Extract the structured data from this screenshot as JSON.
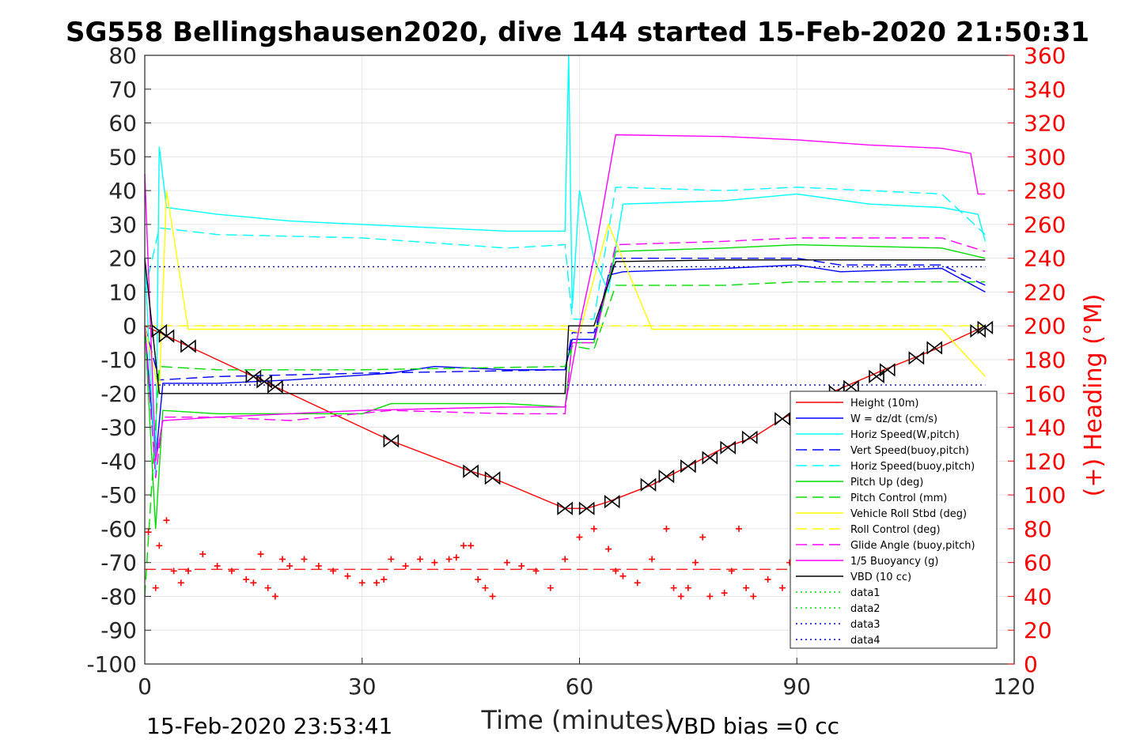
{
  "chart_data": {
    "type": "line",
    "title": "SG558 Bellingshausen2020, dive 144 started 15-Feb-2020 21:50:31",
    "xlabel": "Time (minutes)",
    "ylabel_left": "",
    "ylabel_right": "(+) Heading (°M)",
    "xlim": [
      0,
      120
    ],
    "ylim": [
      -100,
      80
    ],
    "ylim_right": [
      0,
      360
    ],
    "x_ticks": [
      0,
      30,
      60,
      90,
      120
    ],
    "y_ticks": [
      80,
      70,
      60,
      50,
      40,
      30,
      20,
      10,
      0,
      -10,
      -20,
      -30,
      -40,
      -50,
      -60,
      -70,
      -80,
      -90,
      -100
    ],
    "y_ticks_right": [
      360,
      340,
      320,
      300,
      280,
      260,
      240,
      220,
      200,
      180,
      160,
      140,
      120,
      100,
      80,
      60,
      40,
      20,
      0
    ],
    "grid": true,
    "legend_position": "bottom-right",
    "footer_left": "15-Feb-2020 23:53:41",
    "footer_right": "VBD bias =0 cc",
    "series": [
      {
        "name": "Height (10m)",
        "color": "#ff0000",
        "style": "solid",
        "x": [
          0,
          2,
          6,
          15,
          18,
          34,
          45,
          48,
          58,
          61,
          64,
          70,
          75,
          80,
          84,
          88,
          95,
          102,
          109,
          116
        ],
        "y": [
          0,
          -2,
          -6,
          -15,
          -18,
          -34,
          -43,
          -45,
          -54,
          -54,
          -52,
          -47,
          -41.5,
          -36,
          -33,
          -27.5,
          -19.5,
          -13,
          -7,
          0
        ]
      },
      {
        "name": "W = dz/dt (cm/s)",
        "color": "#0000ff",
        "style": "solid",
        "x": [
          0,
          1.5,
          2.5,
          10,
          20,
          34,
          40,
          50,
          58,
          59,
          62,
          64,
          66,
          80,
          90,
          96,
          110,
          116
        ],
        "y": [
          0,
          -40,
          -17,
          -17,
          -16,
          -14,
          -12,
          -13,
          -13,
          -4,
          -4,
          15,
          16,
          17,
          18,
          16,
          17,
          10
        ]
      },
      {
        "name": "Horiz Speed(W,pitch)",
        "color": "#00ffff",
        "style": "solid",
        "x": [
          0,
          1.5,
          2,
          3,
          10,
          20,
          30,
          40,
          50,
          58,
          58.5,
          59,
          60,
          62,
          64,
          66,
          80,
          90,
          100,
          110,
          115,
          116
        ],
        "y": [
          20,
          -45,
          53,
          35,
          33,
          31,
          30,
          29,
          28,
          28,
          80,
          5,
          40,
          20,
          10,
          36,
          37,
          39,
          36,
          35,
          33,
          25
        ]
      },
      {
        "name": "Vert Speed(buoy,pitch)",
        "color": "#0000ff",
        "style": "dashed",
        "x": [
          0,
          2,
          10,
          30,
          58,
          59,
          62,
          65,
          80,
          90,
          96,
          110,
          116
        ],
        "y": [
          0,
          -16,
          -15,
          -14,
          -13,
          -2,
          -2,
          20,
          20,
          20,
          18,
          18,
          12
        ]
      },
      {
        "name": "Horiz Speed(buoy,pitch)",
        "color": "#00ffff",
        "style": "dashed",
        "x": [
          0,
          2,
          10,
          30,
          50,
          58,
          59,
          62,
          65,
          80,
          90,
          110,
          116
        ],
        "y": [
          10,
          29,
          27,
          26,
          23,
          24,
          2,
          2,
          41,
          40,
          41,
          39,
          27
        ]
      },
      {
        "name": "Pitch Up (deg)",
        "color": "#00dd00",
        "style": "solid",
        "x": [
          0,
          1.5,
          2.5,
          10,
          30,
          34,
          50,
          58,
          59,
          62,
          65,
          80,
          90,
          110,
          116
        ],
        "y": [
          0,
          -60,
          -25,
          -26,
          -26,
          -23,
          -23,
          -24,
          -5,
          -5,
          22,
          23,
          24,
          23,
          20
        ]
      },
      {
        "name": "Pitch Control (mm)",
        "color": "#00dd00",
        "style": "dashed",
        "x": [
          0,
          2,
          10,
          30,
          58,
          59,
          62,
          65,
          80,
          90,
          116
        ],
        "y": [
          -80,
          -12,
          -13,
          -13,
          -12,
          -6,
          -7,
          12,
          12,
          13,
          13
        ]
      },
      {
        "name": "Vehicle Roll Stbd (deg)",
        "color": "#ffff00",
        "style": "solid",
        "x": [
          0,
          2,
          3,
          6,
          10,
          20,
          30,
          40,
          50,
          58,
          60,
          64,
          70,
          80,
          90,
          100,
          110,
          116
        ],
        "y": [
          0,
          -20,
          40,
          -1,
          -1,
          -1,
          -1,
          -1,
          -1,
          -1,
          -2,
          30,
          -1,
          -1,
          -1,
          -1,
          -1,
          -15
        ]
      },
      {
        "name": "Roll Control (deg)",
        "color": "#ffff00",
        "style": "dashed",
        "x": [
          0,
          2,
          10,
          30,
          58,
          64,
          80,
          100,
          116
        ],
        "y": [
          0,
          0,
          0,
          0,
          0,
          0,
          0,
          0,
          0
        ]
      },
      {
        "name": "Glide Angle (buoy,pitch)",
        "color": "#ff00ff",
        "style": "dashed",
        "x": [
          0,
          1.5,
          2.5,
          10,
          20,
          34,
          50,
          58,
          59,
          62,
          65,
          80,
          90,
          110,
          116
        ],
        "y": [
          0,
          -45,
          -27,
          -27,
          -28,
          -25,
          -26,
          -26,
          -5,
          -5,
          24,
          25,
          26,
          26,
          22
        ]
      },
      {
        "name": "1/5 Buoyancy (g)",
        "color": "#ff00ff",
        "style": "solid",
        "x": [
          0,
          1.5,
          2.5,
          10,
          20,
          30,
          40,
          50,
          58,
          60,
          62,
          65,
          80,
          90,
          100,
          110,
          114,
          115,
          116
        ],
        "y": [
          45,
          -40,
          -28,
          -27,
          -26,
          -25,
          -24.5,
          -24,
          -24,
          0,
          20,
          56.5,
          56,
          55,
          53.5,
          52.5,
          51,
          39,
          39
        ]
      },
      {
        "name": "VBD (10 cc)",
        "color": "#000000",
        "style": "solid",
        "x": [
          0,
          2,
          10,
          58,
          58.5,
          62,
          65,
          80,
          116
        ],
        "y": [
          20,
          -20,
          -20,
          -20,
          0,
          0,
          19,
          19.5,
          19.5
        ]
      },
      {
        "name": "data1",
        "color": "#00dd00",
        "style": "dotted",
        "x": [],
        "y": []
      },
      {
        "name": "data2",
        "color": "#00dd00",
        "style": "dotted",
        "x": [],
        "y": []
      },
      {
        "name": "data3",
        "color": "#0000cc",
        "style": "dotted",
        "x": [
          0,
          116
        ],
        "y": [
          17.5,
          17.5
        ]
      },
      {
        "name": "data4",
        "color": "#0000cc",
        "style": "dotted",
        "x": [
          0,
          116
        ],
        "y": [
          -17.5,
          -17.5
        ]
      }
    ],
    "heading": {
      "axis": "right",
      "color": "#ff0000",
      "marker": "+",
      "x": [
        0.5,
        1.5,
        2,
        3,
        4,
        5,
        6,
        8,
        10,
        12,
        14,
        15,
        16,
        17,
        18,
        19,
        20,
        22,
        24,
        26,
        28,
        30,
        32,
        33,
        34,
        36,
        38,
        40,
        42,
        43,
        44,
        45,
        46,
        47,
        48,
        50,
        52,
        54,
        56,
        58,
        60,
        62,
        64,
        65,
        66,
        68,
        70,
        72,
        73,
        74,
        75,
        76,
        77,
        78,
        80,
        81,
        82,
        83,
        84,
        86,
        88,
        89
      ],
      "y": [
        78,
        45,
        70,
        85,
        55,
        48,
        55,
        65,
        58,
        55,
        50,
        48,
        65,
        45,
        40,
        62,
        58,
        62,
        58,
        55,
        52,
        48,
        48,
        50,
        62,
        58,
        62,
        60,
        62,
        63,
        70,
        70,
        50,
        45,
        40,
        60,
        58,
        55,
        45,
        62,
        75,
        80,
        68,
        55,
        52,
        48,
        62,
        80,
        45,
        40,
        45,
        60,
        75,
        40,
        42,
        55,
        80,
        45,
        40,
        50,
        45,
        60
      ]
    },
    "heading_target": {
      "color": "#ff0000",
      "style": "dashed",
      "x": [
        0,
        116
      ],
      "y": [
        56,
        56
      ]
    },
    "markers": {
      "color": "#000000",
      "x": [
        2,
        3,
        6,
        15,
        16.5,
        18,
        34,
        45,
        48,
        58,
        61,
        64.5,
        69.5,
        72,
        75,
        78,
        80.5,
        83.5,
        88,
        95.5,
        97.5,
        101,
        102.5,
        106.5,
        109,
        115,
        116
      ],
      "y": [
        -1.5,
        -3,
        -6,
        -15,
        -16.5,
        -18,
        -34,
        -43,
        -45,
        -54,
        -54,
        -52,
        -47,
        -44.5,
        -41.5,
        -39,
        -36,
        -33,
        -27.5,
        -19.5,
        -18,
        -15,
        -13,
        -9.5,
        -6.5,
        -1.5,
        -0.5
      ]
    }
  }
}
